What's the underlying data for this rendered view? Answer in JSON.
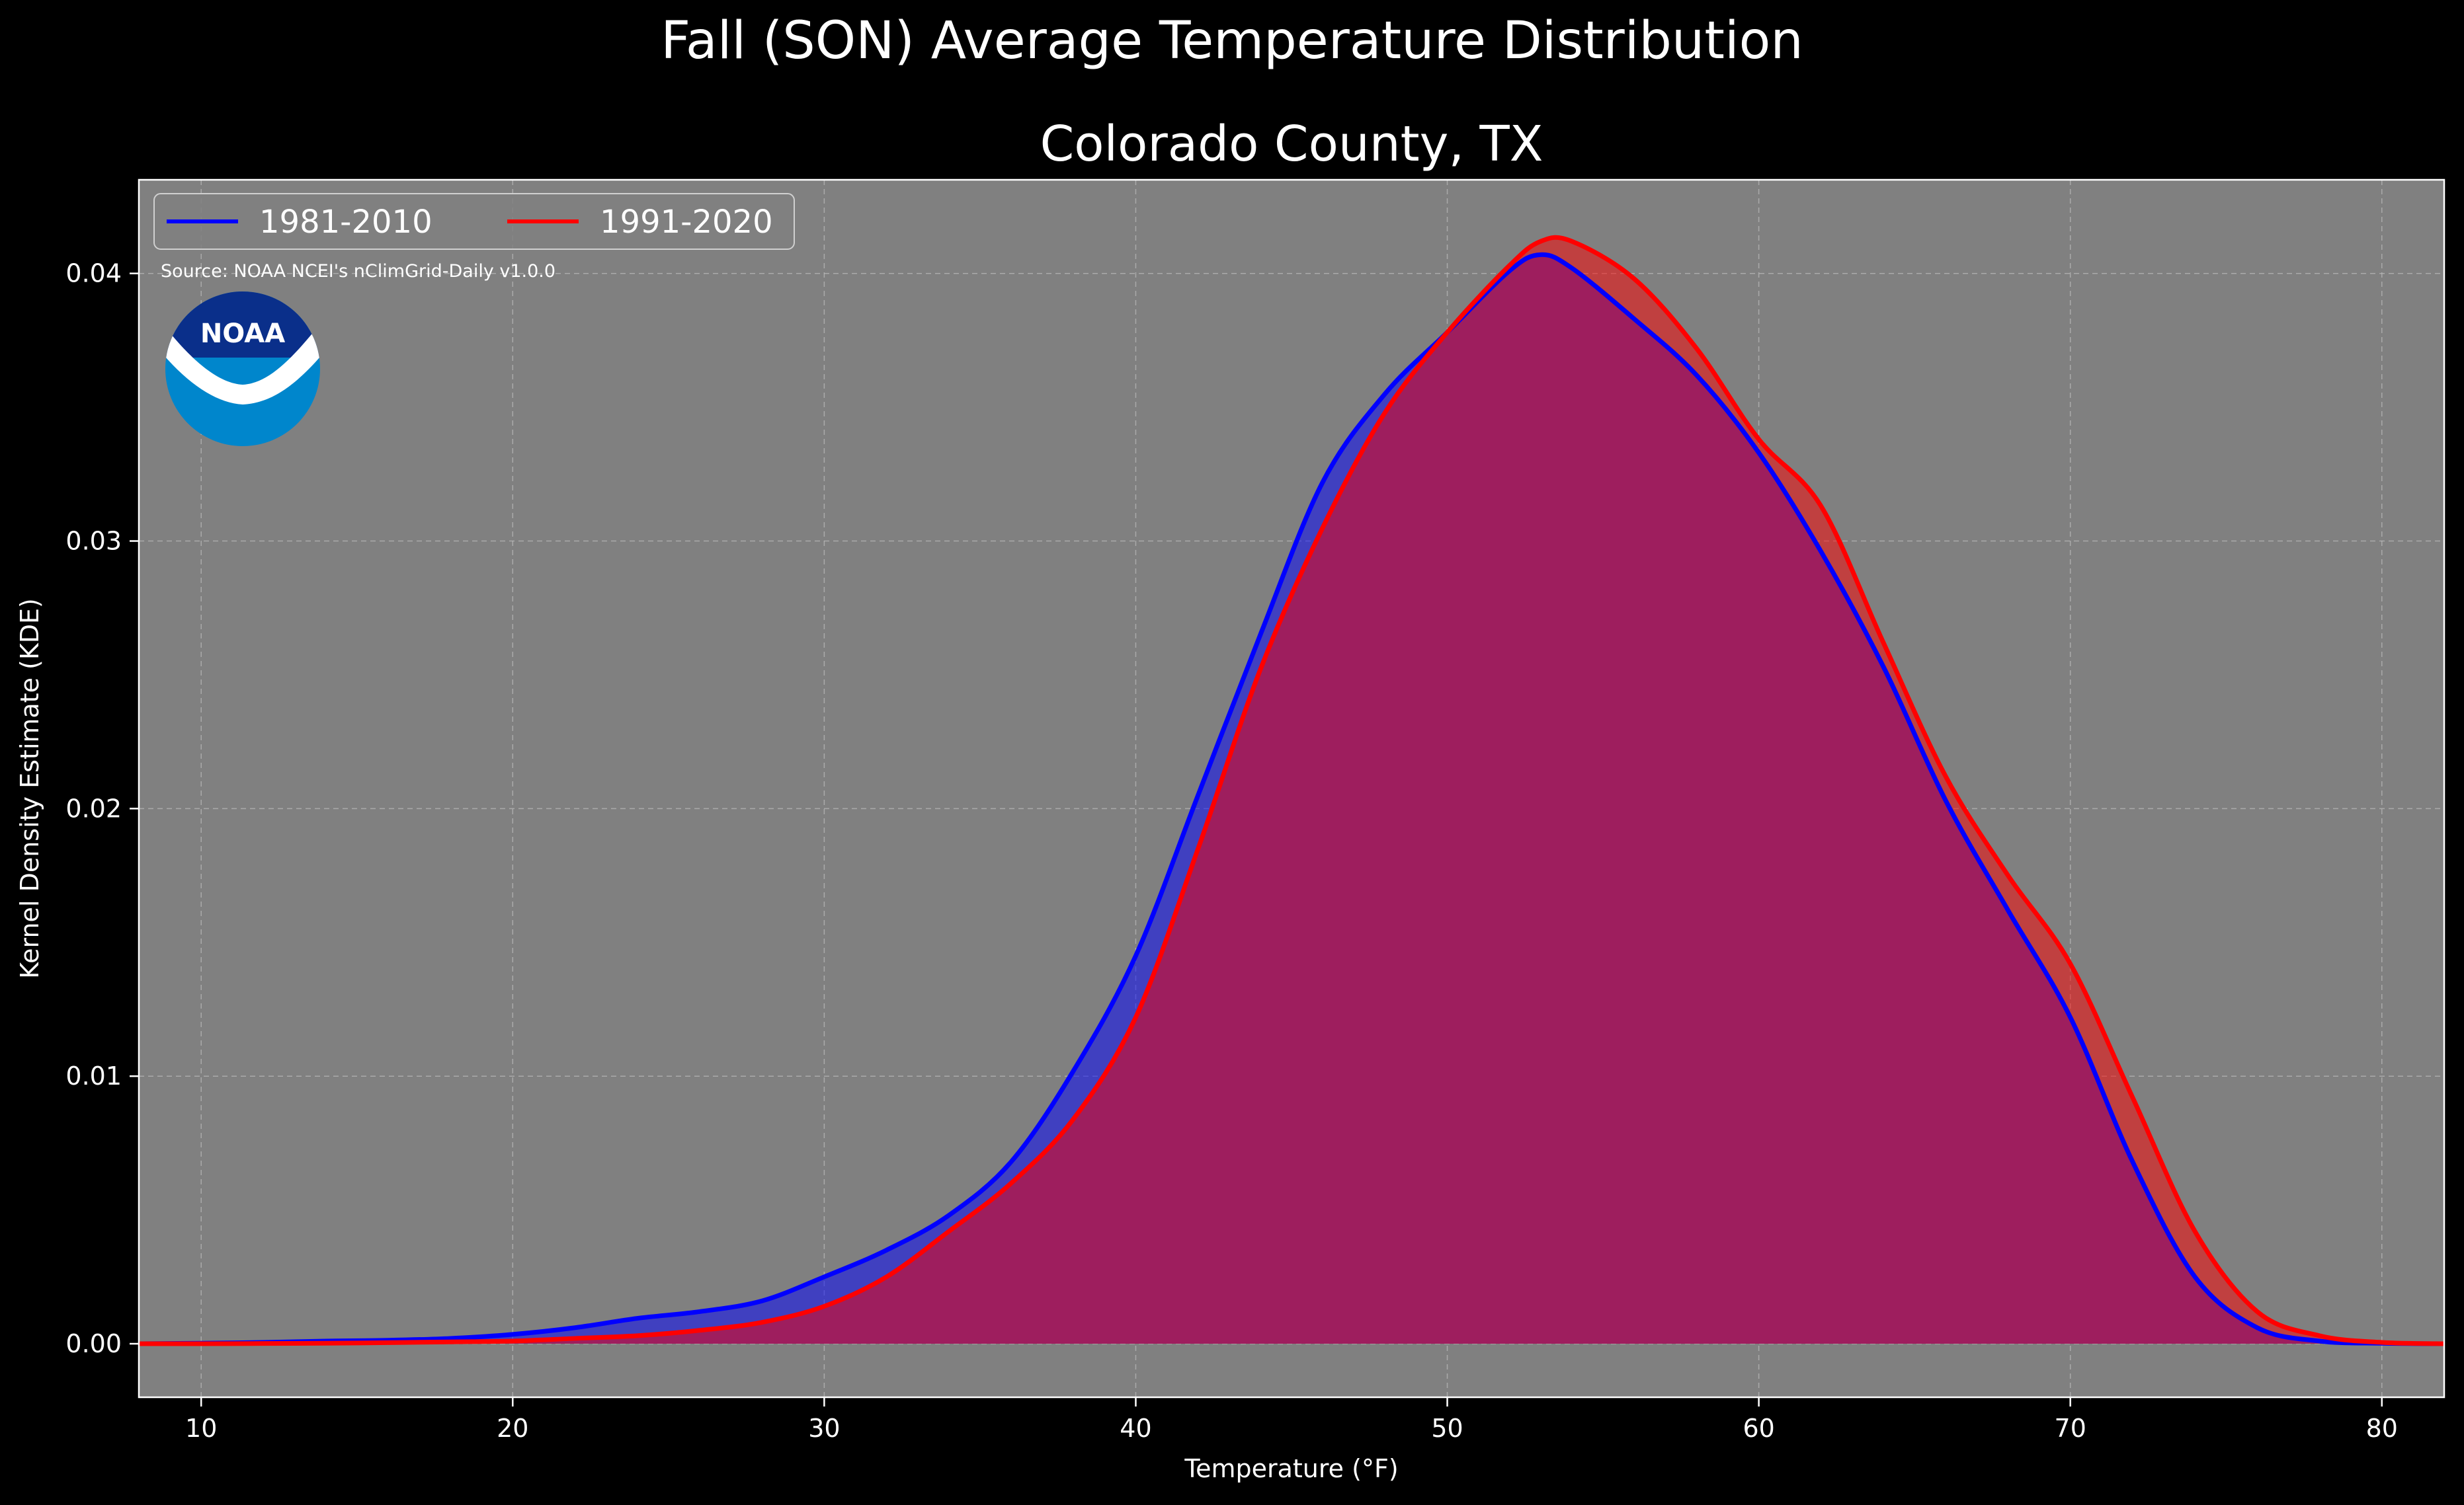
{
  "colors": {
    "figure_bg": "#000000",
    "axes_bg": "#808080",
    "grid": "#b8b8b8",
    "series_1981_2010": "#0000ff",
    "series_1991_2020": "#ff0000",
    "overlap_fill": "#9e1e5e",
    "noaa_dark": "#0a2f8a",
    "noaa_light": "#0086cc"
  },
  "legend": {
    "items": [
      {
        "label": "1981-2010"
      },
      {
        "label": "1991-2020"
      }
    ]
  },
  "source_note": "Source: NOAA NCEI's nClimGrid-Daily v1.0.0",
  "logo": {
    "text": "NOAA"
  },
  "chart_data": {
    "type": "area",
    "title": "Fall (SON) Average Temperature Distribution",
    "subtitle": "Colorado County, TX",
    "xlabel": "Temperature (°F)",
    "ylabel": "Kernel Density Estimate (KDE)",
    "xlim": [
      8,
      82
    ],
    "ylim": [
      -0.002,
      0.0435
    ],
    "xticks": [
      10,
      20,
      30,
      40,
      50,
      60,
      70,
      80
    ],
    "xtick_labels": [
      "10",
      "20",
      "30",
      "40",
      "50",
      "60",
      "70",
      "80"
    ],
    "yticks": [
      0.0,
      0.01,
      0.02,
      0.03,
      0.04
    ],
    "ytick_labels": [
      "0.00",
      "0.01",
      "0.02",
      "0.03",
      "0.04"
    ],
    "grid": true,
    "legend_position": "top-left",
    "x": [
      8,
      10,
      12,
      14,
      16,
      18,
      20,
      22,
      24,
      26,
      28,
      30,
      32,
      34,
      36,
      38,
      40,
      42,
      44,
      46,
      48,
      50,
      52,
      53,
      54,
      56,
      58,
      60,
      62,
      64,
      66,
      68,
      70,
      72,
      74,
      76,
      78,
      80,
      82
    ],
    "series": [
      {
        "name": "1981-2010",
        "values": [
          0,
          2e-05,
          5e-05,
          0.0001,
          0.00013,
          0.0002,
          0.00035,
          0.0006,
          0.00095,
          0.0012,
          0.0016,
          0.0025,
          0.0035,
          0.0048,
          0.0068,
          0.0102,
          0.0145,
          0.0205,
          0.0265,
          0.0322,
          0.0355,
          0.0378,
          0.0401,
          0.0407,
          0.0402,
          0.0383,
          0.0362,
          0.0333,
          0.0296,
          0.0253,
          0.0203,
          0.0162,
          0.0122,
          0.0068,
          0.0025,
          0.0006,
          0.0001,
          2e-05,
          0
        ]
      },
      {
        "name": "1991-2020",
        "values": [
          0,
          0,
          1e-05,
          2e-05,
          4e-05,
          7e-05,
          0.0001,
          0.0002,
          0.0003,
          0.0005,
          0.0008,
          0.0014,
          0.0025,
          0.0042,
          0.006,
          0.0084,
          0.0122,
          0.0185,
          0.0252,
          0.0305,
          0.0348,
          0.0378,
          0.0403,
          0.0412,
          0.0412,
          0.0398,
          0.0372,
          0.0338,
          0.0313,
          0.0262,
          0.0212,
          0.0175,
          0.0142,
          0.0092,
          0.0042,
          0.0012,
          0.0003,
          5e-05,
          0
        ]
      }
    ]
  }
}
